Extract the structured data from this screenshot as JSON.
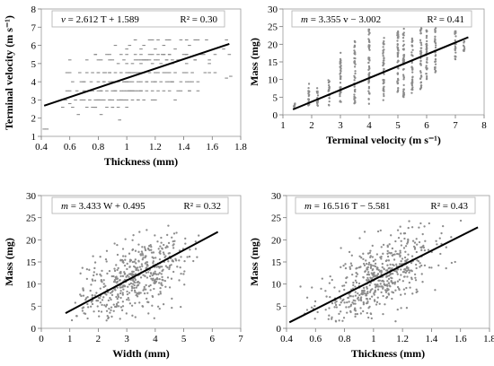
{
  "chart_data": [
    {
      "type": "scatter",
      "title": "",
      "xlabel": "Thickness (mm)",
      "ylabel": "Terminal velocity (m s⁻¹)",
      "xlim": [
        0.4,
        1.8
      ],
      "ylim": [
        1,
        8
      ],
      "xticks": [
        0.4,
        0.6,
        0.8,
        1.0,
        1.2,
        1.4,
        1.6,
        1.8
      ],
      "yticks": [
        1,
        2,
        3,
        4,
        5,
        6,
        7,
        8
      ],
      "xtick_labels": [
        "0.4",
        "0.6",
        "0.8",
        "1",
        "1.2",
        "1.4",
        "1.6",
        "1.8"
      ],
      "ytick_labels": [
        "1",
        "2",
        "3",
        "4",
        "5",
        "6",
        "7",
        "8"
      ],
      "equation": {
        "lhs": "v",
        "text": " = 2.612 T + 1.589",
        "r2": "R² = 0.30"
      },
      "trendline": {
        "slope": 2.612,
        "intercept": 1.589,
        "x_start": 0.42,
        "x_end": 1.72
      },
      "point_style": "dash",
      "points": [
        [
          0.42,
          1.4
        ],
        [
          0.44,
          1.4
        ],
        [
          0.55,
          2.6
        ],
        [
          0.57,
          3.0
        ],
        [
          0.58,
          3.5
        ],
        [
          0.6,
          2.8
        ],
        [
          0.6,
          3.5
        ],
        [
          0.62,
          2.6
        ],
        [
          0.62,
          4.0
        ],
        [
          0.64,
          3.0
        ],
        [
          0.65,
          3.5
        ],
        [
          0.66,
          2.2
        ],
        [
          0.67,
          4.5
        ],
        [
          0.68,
          3.0
        ],
        [
          0.7,
          3.5
        ],
        [
          0.7,
          4.0
        ],
        [
          0.72,
          2.6
        ],
        [
          0.72,
          5.2
        ],
        [
          0.74,
          3.0
        ],
        [
          0.74,
          3.5
        ],
        [
          0.75,
          4.0
        ],
        [
          0.76,
          4.5
        ],
        [
          0.78,
          2.6
        ],
        [
          0.78,
          3.0
        ],
        [
          0.78,
          5.5
        ],
        [
          0.8,
          3.0
        ],
        [
          0.8,
          3.5
        ],
        [
          0.8,
          4.0
        ],
        [
          0.8,
          4.5
        ],
        [
          0.82,
          2.2
        ],
        [
          0.82,
          3.5
        ],
        [
          0.82,
          5.2
        ],
        [
          0.84,
          3.0
        ],
        [
          0.84,
          4.0
        ],
        [
          0.85,
          4.5
        ],
        [
          0.86,
          2.6
        ],
        [
          0.86,
          3.5
        ],
        [
          0.86,
          5.5
        ],
        [
          0.88,
          3.0
        ],
        [
          0.88,
          4.0
        ],
        [
          0.88,
          4.5
        ],
        [
          0.9,
          2.6
        ],
        [
          0.9,
          3.0
        ],
        [
          0.9,
          3.5
        ],
        [
          0.9,
          4.0
        ],
        [
          0.9,
          5.2
        ],
        [
          0.92,
          3.5
        ],
        [
          0.92,
          4.5
        ],
        [
          0.92,
          6.0
        ],
        [
          0.94,
          3.0
        ],
        [
          0.94,
          4.0
        ],
        [
          0.94,
          5.0
        ],
        [
          0.95,
          1.9
        ],
        [
          0.96,
          3.5
        ],
        [
          0.96,
          4.5
        ],
        [
          0.96,
          5.5
        ],
        [
          0.98,
          3.0
        ],
        [
          0.98,
          4.0
        ],
        [
          0.98,
          5.2
        ],
        [
          1.0,
          2.6
        ],
        [
          1.0,
          3.0
        ],
        [
          1.0,
          3.5
        ],
        [
          1.0,
          4.0
        ],
        [
          1.0,
          4.5
        ],
        [
          1.0,
          5.0
        ],
        [
          1.0,
          5.8
        ],
        [
          1.02,
          3.5
        ],
        [
          1.02,
          4.0
        ],
        [
          1.02,
          4.5
        ],
        [
          1.02,
          6.0
        ],
        [
          1.04,
          3.0
        ],
        [
          1.04,
          4.0
        ],
        [
          1.04,
          5.0
        ],
        [
          1.05,
          4.5
        ],
        [
          1.06,
          3.5
        ],
        [
          1.06,
          4.5
        ],
        [
          1.06,
          5.5
        ],
        [
          1.06,
          6.3
        ],
        [
          1.08,
          3.0
        ],
        [
          1.08,
          4.0
        ],
        [
          1.08,
          5.2
        ],
        [
          1.1,
          3.5
        ],
        [
          1.1,
          4.0
        ],
        [
          1.1,
          4.5
        ],
        [
          1.1,
          5.0
        ],
        [
          1.1,
          5.8
        ],
        [
          1.12,
          3.0
        ],
        [
          1.12,
          4.5
        ],
        [
          1.12,
          6.0
        ],
        [
          1.14,
          3.5
        ],
        [
          1.14,
          4.0
        ],
        [
          1.14,
          5.2
        ],
        [
          1.16,
          4.5
        ],
        [
          1.16,
          5.5
        ],
        [
          1.16,
          6.3
        ],
        [
          1.18,
          3.5
        ],
        [
          1.18,
          4.0
        ],
        [
          1.18,
          5.0
        ],
        [
          1.2,
          3.0
        ],
        [
          1.2,
          4.0
        ],
        [
          1.2,
          4.5
        ],
        [
          1.2,
          5.2
        ],
        [
          1.2,
          5.8
        ],
        [
          1.22,
          3.5
        ],
        [
          1.22,
          4.5
        ],
        [
          1.22,
          6.3
        ],
        [
          1.24,
          4.0
        ],
        [
          1.24,
          5.0
        ],
        [
          1.25,
          5.5
        ],
        [
          1.26,
          3.5
        ],
        [
          1.26,
          4.5
        ],
        [
          1.26,
          6.0
        ],
        [
          1.28,
          4.0
        ],
        [
          1.28,
          5.2
        ],
        [
          1.3,
          3.5
        ],
        [
          1.3,
          4.5
        ],
        [
          1.3,
          5.5
        ],
        [
          1.3,
          6.3
        ],
        [
          1.32,
          4.0
        ],
        [
          1.32,
          5.0
        ],
        [
          1.34,
          4.5
        ],
        [
          1.34,
          5.8
        ],
        [
          1.36,
          3.5
        ],
        [
          1.36,
          5.2
        ],
        [
          1.38,
          4.0
        ],
        [
          1.38,
          6.3
        ],
        [
          1.4,
          4.5
        ],
        [
          1.4,
          5.5
        ],
        [
          1.42,
          4.0
        ],
        [
          1.42,
          5.0
        ],
        [
          1.44,
          3.5
        ],
        [
          1.44,
          6.0
        ],
        [
          1.46,
          4.5
        ],
        [
          1.48,
          5.2
        ],
        [
          1.5,
          4.0
        ],
        [
          1.5,
          6.3
        ],
        [
          1.52,
          5.5
        ],
        [
          1.55,
          4.5
        ],
        [
          1.58,
          5.0
        ],
        [
          1.62,
          4.5
        ],
        [
          1.68,
          5.8
        ],
        [
          1.7,
          6.3
        ],
        [
          1.72,
          5.5
        ],
        [
          1.7,
          4.2
        ],
        [
          1.73,
          4.3
        ]
      ]
    },
    {
      "type": "scatter",
      "title": "",
      "xlabel": "Terminal velocity (m s⁻¹)",
      "ylabel": "Mass (mg)",
      "xlim": [
        1,
        8
      ],
      "ylim": [
        0,
        30
      ],
      "xticks": [
        1,
        2,
        3,
        4,
        5,
        6,
        7,
        8
      ],
      "yticks": [
        0,
        5,
        10,
        15,
        20,
        25,
        30
      ],
      "xtick_labels": [
        "1",
        "2",
        "3",
        "4",
        "5",
        "6",
        "7",
        "8"
      ],
      "ytick_labels": [
        "0",
        "5",
        "10",
        "15",
        "20",
        "25",
        "30"
      ],
      "equation": {
        "lhs": "m",
        "text": " = 3.355 v − 3.002",
        "r2": "R² = 0.41"
      },
      "trendline": {
        "slope": 3.355,
        "intercept": -3.002,
        "x_start": 1.35,
        "x_end": 7.45
      },
      "point_style": "dot",
      "columns_x": [
        1.4,
        1.9,
        2.2,
        2.6,
        3.0,
        3.5,
        4.0,
        4.5,
        5.0,
        5.2,
        5.5,
        5.8,
        6.0,
        6.3,
        7.0,
        7.3
      ],
      "columns_min": [
        2,
        2,
        2,
        2.5,
        3,
        3,
        3,
        4,
        5,
        5,
        6,
        7,
        10,
        12,
        15,
        18
      ],
      "columns_max": [
        3.5,
        9,
        8,
        10,
        18,
        21,
        25,
        22,
        24,
        25,
        22,
        25,
        25,
        25,
        24,
        21
      ]
    },
    {
      "type": "scatter",
      "title": "",
      "xlabel": "Width (mm)",
      "ylabel": "Mass (mg)",
      "xlim": [
        0,
        7
      ],
      "ylim": [
        0,
        30
      ],
      "xticks": [
        0,
        1,
        2,
        3,
        4,
        5,
        6,
        7
      ],
      "yticks": [
        0,
        5,
        10,
        15,
        20,
        25,
        30
      ],
      "xtick_labels": [
        "0",
        "1",
        "2",
        "3",
        "4",
        "5",
        "6",
        "7"
      ],
      "ytick_labels": [
        "0",
        "5",
        "10",
        "15",
        "20",
        "25",
        "30"
      ],
      "equation": {
        "lhs": "m",
        "text": " = 3.433 W + 0.495",
        "r2": "R² = 0.32"
      },
      "trendline": {
        "slope": 3.433,
        "intercept": 0.495,
        "x_start": 0.85,
        "x_end": 6.2
      },
      "point_style": "dot",
      "cloud": {
        "cx": 3.2,
        "cy": 11,
        "sx": 0.95,
        "sy": 5.0,
        "corr": 0.55,
        "n": 520,
        "xmin": 0.9,
        "xmax": 6.3,
        "ymin": 1.2,
        "ymax": 24.5
      }
    },
    {
      "type": "scatter",
      "title": "",
      "xlabel": "Thickness (mm)",
      "ylabel": "Mass (mg)",
      "xlim": [
        0.4,
        1.8
      ],
      "ylim": [
        0,
        30
      ],
      "xticks": [
        0.4,
        0.6,
        0.8,
        1.0,
        1.2,
        1.4,
        1.6,
        1.8
      ],
      "yticks": [
        0,
        5,
        10,
        15,
        20,
        25,
        30
      ],
      "xtick_labels": [
        "0.4",
        "0.6",
        "0.8",
        "1",
        "1.2",
        "1.4",
        "1.6",
        "1.8"
      ],
      "ytick_labels": [
        "0",
        "5",
        "10",
        "15",
        "20",
        "25",
        "30"
      ],
      "equation": {
        "lhs": "m",
        "text": " = 16.516 T − 5.581",
        "r2": "R² = 0.43"
      },
      "trendline": {
        "slope": 16.516,
        "intercept": -5.581,
        "x_start": 0.42,
        "x_end": 1.72
      },
      "point_style": "dot",
      "cloud": {
        "cx": 1.02,
        "cy": 11,
        "sx": 0.2,
        "sy": 5.2,
        "corr": 0.62,
        "n": 560,
        "xmin": 0.42,
        "xmax": 1.74,
        "ymin": 1.5,
        "ymax": 24.5
      }
    }
  ]
}
